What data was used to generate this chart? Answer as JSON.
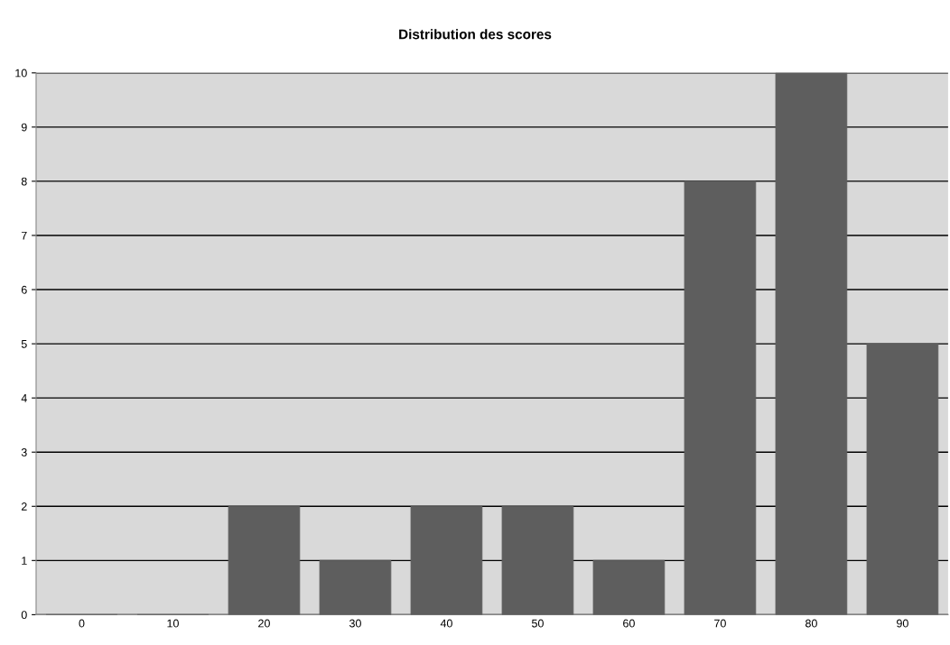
{
  "chart_data": {
    "type": "bar",
    "title": "Distribution des scores",
    "categories": [
      "0",
      "10",
      "20",
      "30",
      "40",
      "50",
      "60",
      "70",
      "80",
      "90"
    ],
    "values": [
      0,
      0,
      2,
      1,
      2,
      2,
      1,
      8,
      10,
      5
    ],
    "color": "#5e5e5e",
    "ylim": [
      0,
      10
    ],
    "yticks": [
      0,
      1,
      2,
      3,
      4,
      5,
      6,
      7,
      8,
      9,
      10
    ],
    "grid": "y"
  }
}
